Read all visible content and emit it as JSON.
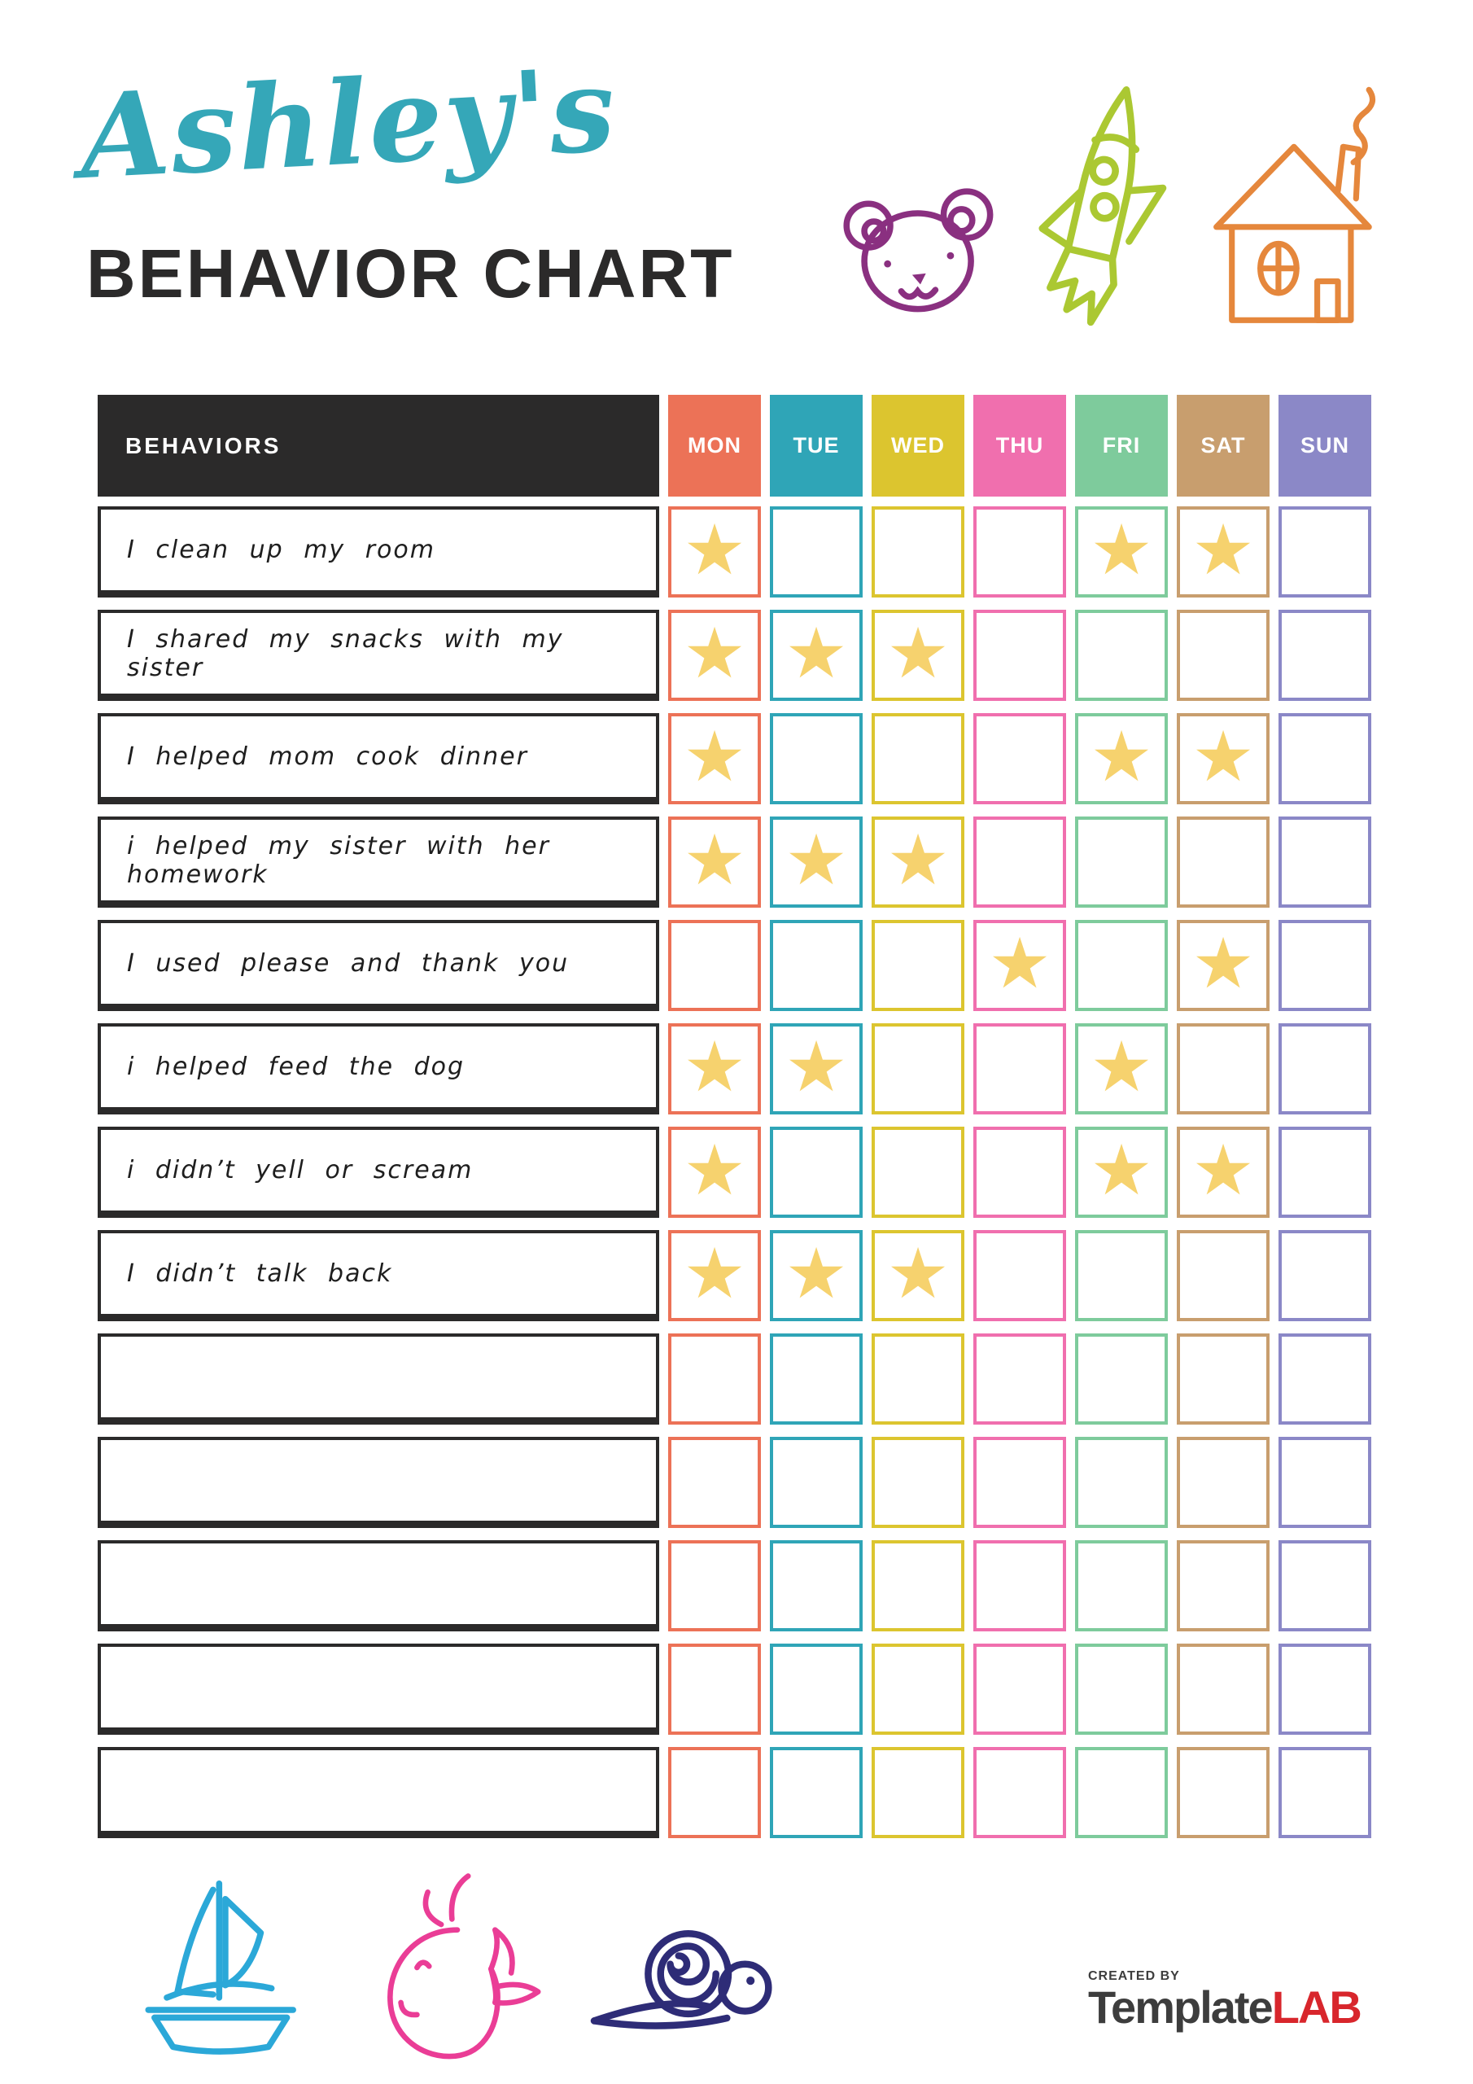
{
  "header": {
    "name_script": "Ashley's",
    "script_color": "#35a7b8",
    "title": "BEHAVIOR CHART",
    "title_color": "#2b2a2a"
  },
  "decorations": {
    "bear_color": "#8a3080",
    "rocket_color": "#abc832",
    "house_color": "#e5873c",
    "sailboat_color": "#2ba8d8",
    "whale_color": "#ea3d96",
    "snail_color": "#2e2c77"
  },
  "table": {
    "behaviors_header": "BEHAVIORS",
    "header_bg": "#2b2a2a",
    "star_glyph": "★",
    "star_color": "#f6d26e",
    "days": [
      {
        "label": "MON",
        "color": "#ec7257"
      },
      {
        "label": "TUE",
        "color": "#2fa5b7"
      },
      {
        "label": "WED",
        "color": "#dcc52f"
      },
      {
        "label": "THU",
        "color": "#f06fae"
      },
      {
        "label": "FRI",
        "color": "#7ecb9c"
      },
      {
        "label": "SAT",
        "color": "#c89e6e"
      },
      {
        "label": "SUN",
        "color": "#8b88c7"
      }
    ],
    "rows": [
      {
        "label": "I clean up my room",
        "stars": [
          "MON",
          "FRI",
          "SAT"
        ]
      },
      {
        "label": "I shared my snacks with my sister",
        "stars": [
          "MON",
          "TUE",
          "WED"
        ]
      },
      {
        "label": "I helped mom cook dinner",
        "stars": [
          "MON",
          "FRI",
          "SAT"
        ]
      },
      {
        "label": "i helped my sister with her homework",
        "stars": [
          "MON",
          "TUE",
          "WED"
        ]
      },
      {
        "label": "I used please and thank you",
        "stars": [
          "THU",
          "SAT"
        ]
      },
      {
        "label": "i helped feed the dog",
        "stars": [
          "MON",
          "TUE",
          "FRI"
        ]
      },
      {
        "label": "i didn’t yell or scream",
        "stars": [
          "MON",
          "FRI",
          "SAT"
        ]
      },
      {
        "label": "I didn’t talk back",
        "stars": [
          "MON",
          "TUE",
          "WED"
        ]
      },
      {
        "label": "",
        "stars": []
      },
      {
        "label": "",
        "stars": []
      },
      {
        "label": "",
        "stars": []
      },
      {
        "label": "",
        "stars": []
      },
      {
        "label": "",
        "stars": []
      }
    ]
  },
  "footer": {
    "credit": "CREATED BY",
    "brand_dark": "Template",
    "brand_dark_color": "#3d3d3d",
    "brand_accent": "LAB",
    "brand_accent_color": "#d8262c"
  }
}
